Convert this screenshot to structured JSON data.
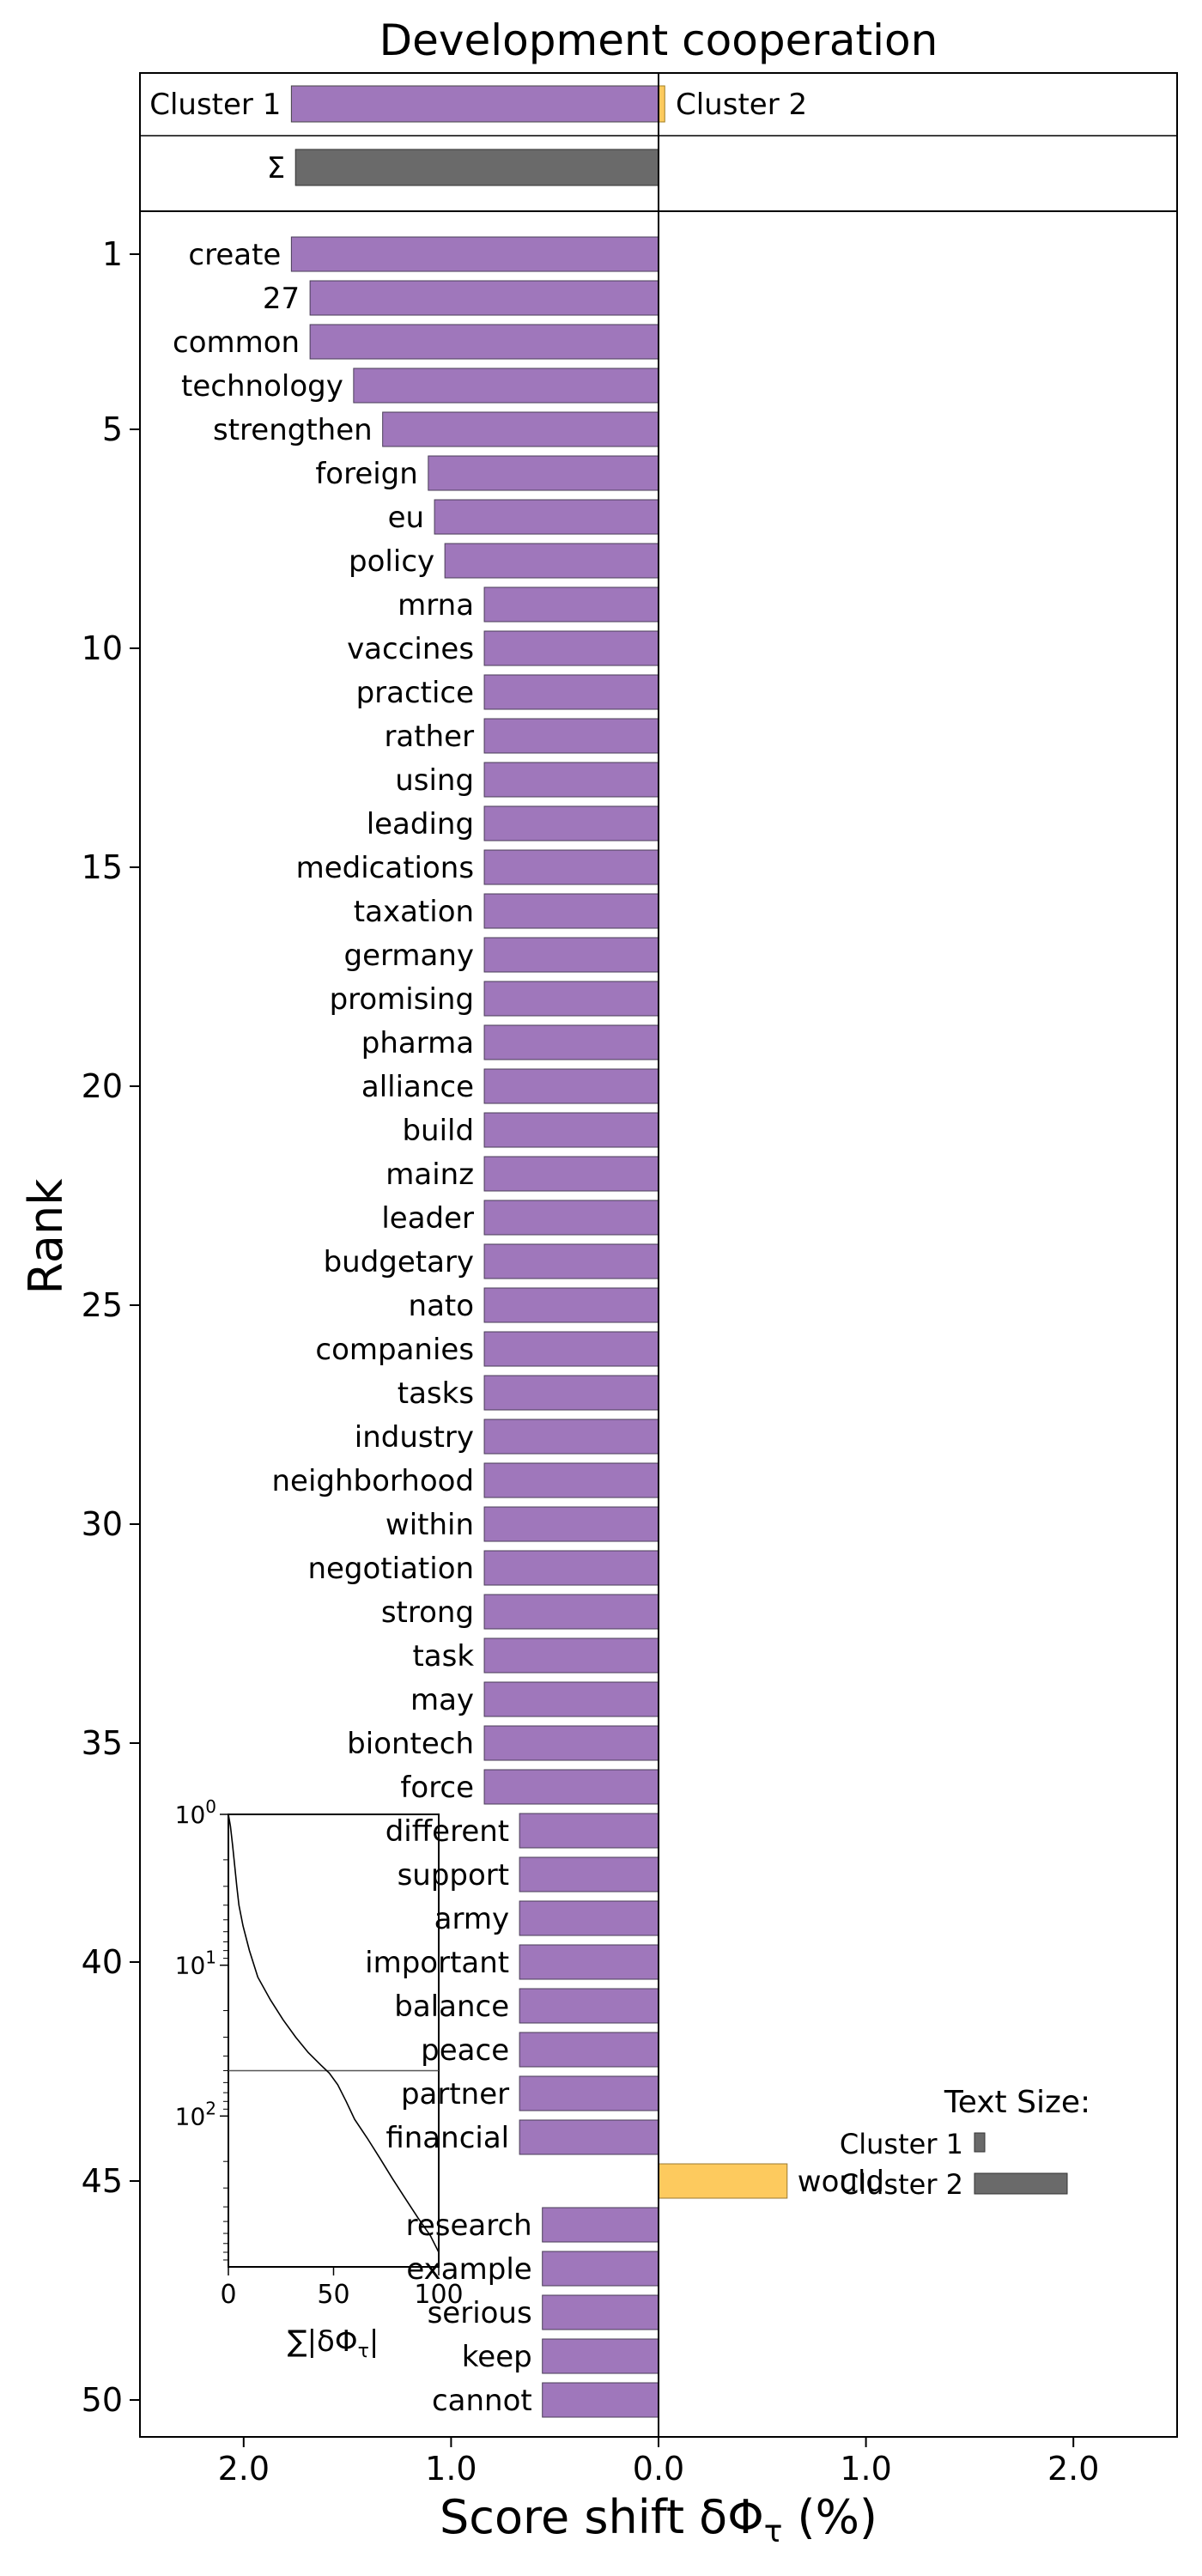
{
  "chart_data": {
    "type": "bar",
    "title": "Development cooperation",
    "xlabel": "Score shift δΦ",
    "xlabel_subscript": "τ",
    "xlabel_unit": " (%)",
    "ylabel": "Rank",
    "xlim": [
      -2.5,
      2.5
    ],
    "x_tick_labels": [
      "2.0",
      "1.0",
      "0.0",
      "1.0",
      "2.0"
    ],
    "x_tick_values": [
      -2.0,
      -1.0,
      0.0,
      1.0,
      2.0
    ],
    "y_tick_values": [
      1,
      5,
      10,
      15,
      20,
      25,
      30,
      35,
      40,
      45,
      50
    ],
    "y_tick_labels": [
      "1",
      "5",
      "10",
      "15",
      "20",
      "25",
      "30",
      "35",
      "40",
      "45",
      "50"
    ],
    "colors": {
      "cluster1": "#9f77bb",
      "cluster2": "#fdca5e",
      "sum": "#6a6a6a"
    },
    "summary": {
      "cluster1_label": "Cluster 1",
      "cluster2_label": "Cluster 2",
      "sum_label": "Σ",
      "cluster1_value": -1.77,
      "cluster2_value": 0.03,
      "sum_value": -1.75
    },
    "words": [
      {
        "rank": 1,
        "word": "create",
        "value": -1.77
      },
      {
        "rank": 2,
        "word": "27",
        "value": -1.68
      },
      {
        "rank": 3,
        "word": "common",
        "value": -1.68
      },
      {
        "rank": 4,
        "word": "technology",
        "value": -1.47
      },
      {
        "rank": 5,
        "word": "strengthen",
        "value": -1.33
      },
      {
        "rank": 6,
        "word": "foreign",
        "value": -1.11
      },
      {
        "rank": 7,
        "word": "eu",
        "value": -1.08
      },
      {
        "rank": 8,
        "word": "policy",
        "value": -1.03
      },
      {
        "rank": 9,
        "word": "mrna",
        "value": -0.84
      },
      {
        "rank": 10,
        "word": "vaccines",
        "value": -0.84
      },
      {
        "rank": 11,
        "word": "practice",
        "value": -0.84
      },
      {
        "rank": 12,
        "word": "rather",
        "value": -0.84
      },
      {
        "rank": 13,
        "word": "using",
        "value": -0.84
      },
      {
        "rank": 14,
        "word": "leading",
        "value": -0.84
      },
      {
        "rank": 15,
        "word": "medications",
        "value": -0.84
      },
      {
        "rank": 16,
        "word": "taxation",
        "value": -0.84
      },
      {
        "rank": 17,
        "word": "germany",
        "value": -0.84
      },
      {
        "rank": 18,
        "word": "promising",
        "value": -0.84
      },
      {
        "rank": 19,
        "word": "pharma",
        "value": -0.84
      },
      {
        "rank": 20,
        "word": "alliance",
        "value": -0.84
      },
      {
        "rank": 21,
        "word": "build",
        "value": -0.84
      },
      {
        "rank": 22,
        "word": "mainz",
        "value": -0.84
      },
      {
        "rank": 23,
        "word": "leader",
        "value": -0.84
      },
      {
        "rank": 24,
        "word": "budgetary",
        "value": -0.84
      },
      {
        "rank": 25,
        "word": "nato",
        "value": -0.84
      },
      {
        "rank": 26,
        "word": "companies",
        "value": -0.84
      },
      {
        "rank": 27,
        "word": "tasks",
        "value": -0.84
      },
      {
        "rank": 28,
        "word": "industry",
        "value": -0.84
      },
      {
        "rank": 29,
        "word": "neighborhood",
        "value": -0.84
      },
      {
        "rank": 30,
        "word": "within",
        "value": -0.84
      },
      {
        "rank": 31,
        "word": "negotiation",
        "value": -0.84
      },
      {
        "rank": 32,
        "word": "strong",
        "value": -0.84
      },
      {
        "rank": 33,
        "word": "task",
        "value": -0.84
      },
      {
        "rank": 34,
        "word": "may",
        "value": -0.84
      },
      {
        "rank": 35,
        "word": "biontech",
        "value": -0.84
      },
      {
        "rank": 36,
        "word": "force",
        "value": -0.84
      },
      {
        "rank": 37,
        "word": "different",
        "value": -0.67
      },
      {
        "rank": 38,
        "word": "support",
        "value": -0.67
      },
      {
        "rank": 39,
        "word": "army",
        "value": -0.67
      },
      {
        "rank": 40,
        "word": "important",
        "value": -0.67
      },
      {
        "rank": 41,
        "word": "balance",
        "value": -0.67
      },
      {
        "rank": 42,
        "word": "peace",
        "value": -0.67
      },
      {
        "rank": 43,
        "word": "partner",
        "value": -0.67
      },
      {
        "rank": 44,
        "word": "financial",
        "value": -0.67
      },
      {
        "rank": 45,
        "word": "would",
        "value": 0.62
      },
      {
        "rank": 46,
        "word": "research",
        "value": -0.56
      },
      {
        "rank": 47,
        "word": "example",
        "value": -0.56
      },
      {
        "rank": 48,
        "word": "serious",
        "value": -0.56
      },
      {
        "rank": 49,
        "word": "keep",
        "value": -0.56
      },
      {
        "rank": 50,
        "word": "cannot",
        "value": -0.56
      }
    ],
    "inset": {
      "type": "line",
      "xlabel": "∑|δΦ",
      "xlabel_subscript": "τ",
      "xlabel_end": "|",
      "xlim": [
        0,
        100
      ],
      "x_tick_labels": [
        "0",
        "50",
        "100"
      ],
      "y_scale": "log",
      "y_tick_labels": [
        {
          "base": "10",
          "exp": "0"
        },
        {
          "base": "10",
          "exp": "1"
        },
        {
          "base": "10",
          "exp": "2"
        }
      ],
      "ylim_rank": [
        1,
        1000
      ],
      "hline_rank": 50,
      "curve": [
        [
          0,
          1
        ],
        [
          1,
          1.2
        ],
        [
          2,
          1.6
        ],
        [
          3,
          2.2
        ],
        [
          4,
          3
        ],
        [
          5,
          4
        ],
        [
          7,
          5.5
        ],
        [
          10,
          8
        ],
        [
          14,
          12
        ],
        [
          20,
          17
        ],
        [
          26,
          23
        ],
        [
          32,
          30
        ],
        [
          38,
          38
        ],
        [
          44,
          46
        ],
        [
          48,
          52
        ],
        [
          52,
          62
        ],
        [
          56,
          80
        ],
        [
          60,
          105
        ],
        [
          66,
          140
        ],
        [
          72,
          190
        ],
        [
          78,
          260
        ],
        [
          84,
          350
        ],
        [
          90,
          470
        ],
        [
          96,
          620
        ],
        [
          100,
          800
        ]
      ]
    },
    "text_size_legend": {
      "title": "Text Size:",
      "cluster1_label": "Cluster 1",
      "cluster2_label": "Cluster 2",
      "cluster1_size": 0.05,
      "cluster2_size": 0.45
    }
  }
}
